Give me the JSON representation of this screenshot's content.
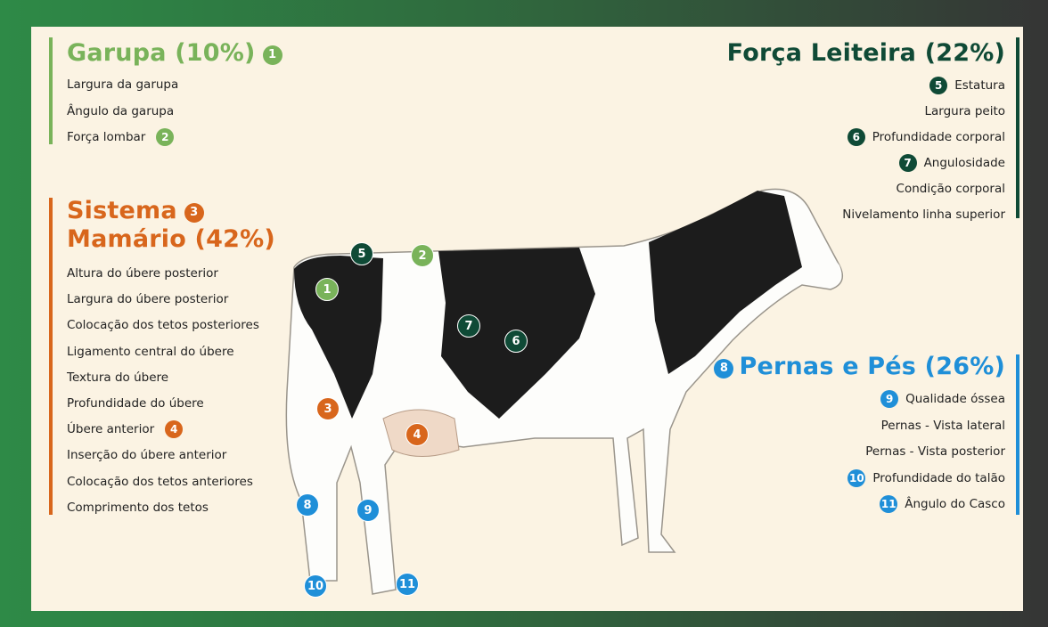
{
  "sections": [
    {
      "title": [
        "Garupa (10%)"
      ],
      "badge": "1",
      "items": [
        {
          "text": "Largura da garupa"
        },
        {
          "text": "Ângulo da garupa"
        },
        {
          "text": "Força lombar",
          "badge": "2"
        }
      ]
    },
    {
      "title": [
        "Sistema",
        "Mamário (42%)"
      ],
      "badge": "3",
      "items": [
        {
          "text": "Altura do úbere posterior"
        },
        {
          "text": "Largura do úbere posterior"
        },
        {
          "text": "Colocação dos tetos posteriores"
        },
        {
          "text": "Ligamento central do úbere"
        },
        {
          "text": "Textura do úbere"
        },
        {
          "text": "Profundidade do úbere"
        },
        {
          "text": "Úbere anterior",
          "badge": "4"
        },
        {
          "text": "Inserção do úbere anterior"
        },
        {
          "text": "Colocação dos tetos anteriores"
        },
        {
          "text": "Comprimento dos tetos"
        }
      ]
    },
    {
      "title": [
        "Força Leiteira (22%)"
      ],
      "items": [
        {
          "text": "Estatura",
          "badge": "5"
        },
        {
          "text": "Largura peito"
        },
        {
          "text": "Profundidade corporal",
          "badge": "6"
        },
        {
          "text": "Angulosidade",
          "badge": "7"
        },
        {
          "text": "Condição corporal"
        },
        {
          "text": "Nivelamento linha superior"
        }
      ]
    },
    {
      "title": [
        "Pernas e Pés (26%)"
      ],
      "badge": "8",
      "items": [
        {
          "text": "Qualidade óssea",
          "badge": "9"
        },
        {
          "text": "Pernas - Vista lateral"
        },
        {
          "text": "Pernas - Vista posterior"
        },
        {
          "text": "Profundidade do talão",
          "badge": "10"
        },
        {
          "text": "Ângulo do Casco",
          "badge": "11"
        }
      ]
    }
  ],
  "cow_markers": [
    {
      "label": "5"
    },
    {
      "label": "2"
    },
    {
      "label": "1"
    },
    {
      "label": "7"
    },
    {
      "label": "6"
    },
    {
      "label": "3"
    },
    {
      "label": "4"
    },
    {
      "label": "8"
    },
    {
      "label": "9"
    },
    {
      "label": "10"
    },
    {
      "label": "11"
    }
  ]
}
